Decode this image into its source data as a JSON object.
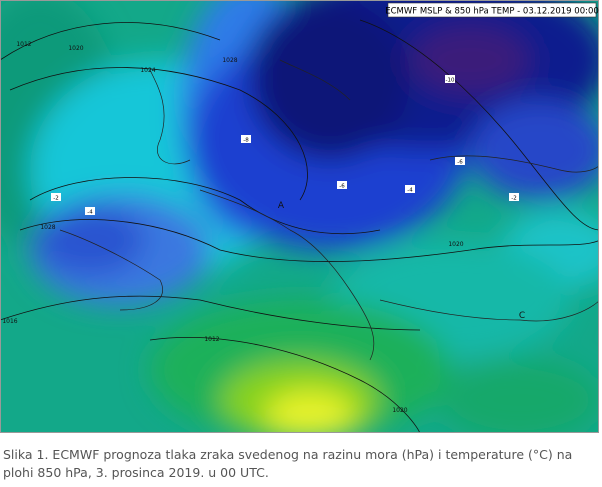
{
  "map": {
    "header_label": "ECMWF MSLP & 850 hPa TEMP - 03.12.2019 00:00",
    "isobar_labels": [
      "1012",
      "1020",
      "1024",
      "1028",
      "1016",
      "1012",
      "1020",
      "1020",
      "1028"
    ],
    "pressure_centers": [
      "A",
      "C"
    ],
    "temperature_labels": [
      "-2",
      "-4",
      "-8",
      "-10",
      "-6",
      "-4",
      "-2",
      "-6"
    ]
  },
  "caption": {
    "lines": [
      "Slika 1. ECMWF prognoza tlaka zraka svedenog na razinu mora (hPa) i temperature (°C) na",
      "plohi 850 hPa, 3. prosinca 2019. u 00 UTC."
    ]
  }
}
